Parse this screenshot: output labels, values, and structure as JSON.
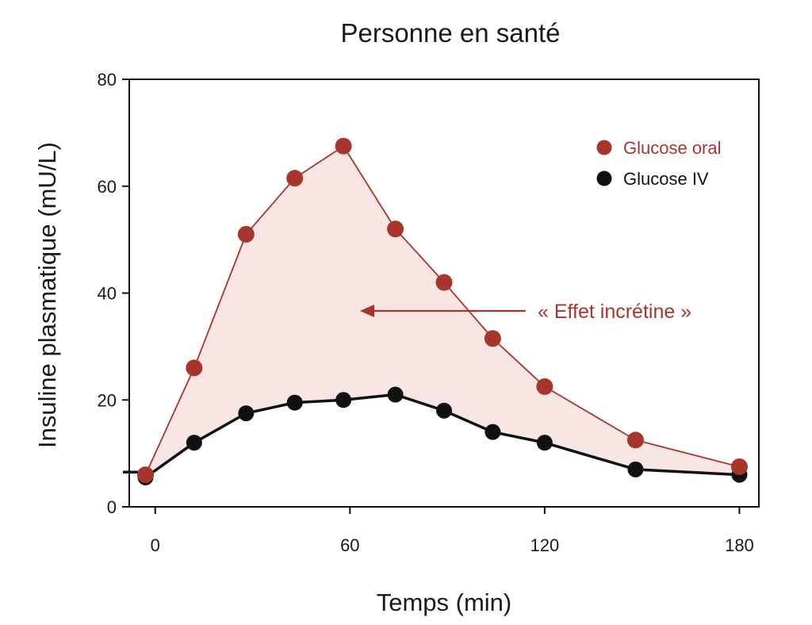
{
  "chart_data": {
    "type": "line",
    "title": "Personne en santé",
    "xlabel": "Temps (min)",
    "ylabel": "Insuline plasmatique (mU/L)",
    "xlim": [
      -8,
      186
    ],
    "ylim": [
      0,
      80
    ],
    "xticks": [
      0,
      60,
      120,
      180
    ],
    "yticks": [
      0,
      20,
      40,
      60,
      80
    ],
    "grid": false,
    "legend_position": "top-right",
    "shaded_area": {
      "between": [
        "Glucose oral",
        "Glucose IV"
      ],
      "color": "#f8e6e4"
    },
    "annotation": {
      "text": "« Effet incrétine »",
      "color": "#a8352c"
    },
    "series": [
      {
        "name": "Glucose oral",
        "color": "#a8352c",
        "x": [
          -3,
          12,
          28,
          43,
          58,
          74,
          89,
          104,
          120,
          148,
          180
        ],
        "y": [
          6,
          26,
          51,
          61.5,
          67.5,
          52,
          42,
          31.5,
          22.5,
          12.5,
          7.5
        ]
      },
      {
        "name": "Glucose IV",
        "color": "#111111",
        "x": [
          -3,
          12,
          28,
          43,
          58,
          74,
          89,
          104,
          120,
          148,
          180
        ],
        "y": [
          5.5,
          12,
          17.5,
          19.5,
          20,
          21,
          18,
          14,
          12,
          7,
          6
        ]
      }
    ]
  }
}
